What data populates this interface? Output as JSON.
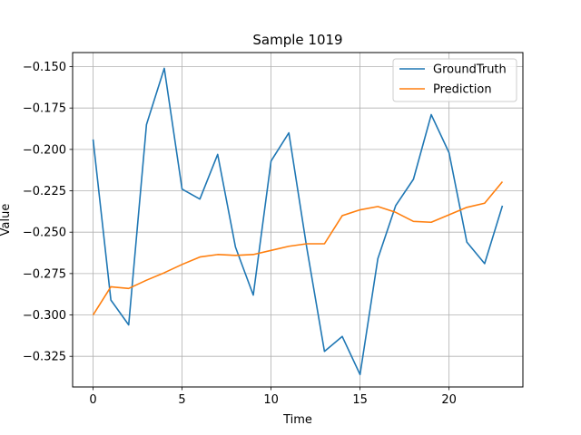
{
  "chart_data": {
    "type": "line",
    "title": "Sample 1019",
    "xlabel": "Time",
    "ylabel": "Value",
    "xlim": [
      -1.15,
      24.15
    ],
    "ylim": [
      -0.3435,
      -0.1415
    ],
    "xticks": [
      0,
      5,
      10,
      15,
      20
    ],
    "xtick_labels": [
      "0",
      "5",
      "10",
      "15",
      "20"
    ],
    "yticks": [
      -0.325,
      -0.3,
      -0.275,
      -0.25,
      -0.225,
      -0.2,
      -0.175,
      -0.15
    ],
    "ytick_labels": [
      "−0.325",
      "−0.300",
      "−0.275",
      "−0.250",
      "−0.225",
      "−0.200",
      "−0.175",
      "−0.150"
    ],
    "grid": true,
    "legend_position": "top-right",
    "x": [
      0,
      1,
      2,
      3,
      4,
      5,
      6,
      7,
      8,
      9,
      10,
      11,
      12,
      13,
      14,
      15,
      16,
      17,
      18,
      19,
      20,
      21,
      22,
      23
    ],
    "series": [
      {
        "name": "GroundTruth",
        "color": "#1f77b4",
        "values": [
          -0.194,
          -0.291,
          -0.306,
          -0.185,
          -0.151,
          -0.224,
          -0.23,
          -0.203,
          -0.259,
          -0.288,
          -0.207,
          -0.19,
          -0.259,
          -0.322,
          -0.313,
          -0.336,
          -0.266,
          -0.234,
          -0.218,
          -0.179,
          -0.202,
          -0.256,
          -0.269,
          -0.234
        ]
      },
      {
        "name": "Prediction",
        "color": "#ff7f0e",
        "values": [
          -0.3,
          -0.283,
          -0.284,
          -0.279,
          -0.2745,
          -0.2695,
          -0.265,
          -0.2635,
          -0.264,
          -0.2635,
          -0.261,
          -0.2585,
          -0.257,
          -0.257,
          -0.24,
          -0.2365,
          -0.2345,
          -0.238,
          -0.2435,
          -0.244,
          -0.2395,
          -0.235,
          -0.2325,
          -0.2195
        ]
      }
    ]
  }
}
